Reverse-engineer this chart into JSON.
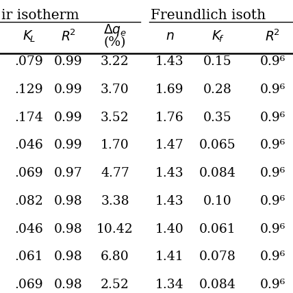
{
  "langmuir_header": "ir isotherm",
  "freundlich_header": "Freundlich isoth",
  "rows": [
    [
      ".079",
      "0.99",
      "3.22",
      "1.43",
      "0.15",
      "0.9⁶"
    ],
    [
      ".129",
      "0.99",
      "3.70",
      "1.69",
      "0.28",
      "0.9⁶"
    ],
    [
      ".174",
      "0.99",
      "3.52",
      "1.76",
      "0.35",
      "0.9⁶"
    ],
    [
      ".046",
      "0.99",
      "1.70",
      "1.47",
      "0.065",
      "0.9⁶"
    ],
    [
      ".069",
      "0.97",
      "4.77",
      "1.43",
      "0.084",
      "0.9⁶"
    ],
    [
      ".082",
      "0.98",
      "3.38",
      "1.43",
      "0.10",
      "0.9⁶"
    ],
    [
      ".046",
      "0.98",
      "10.42",
      "1.40",
      "0.061",
      "0.9⁶"
    ],
    [
      ".061",
      "0.98",
      "6.80",
      "1.41",
      "0.078",
      "0.9⁶"
    ],
    [
      ".069",
      "0.98",
      "2.52",
      "1.34",
      "0.084",
      "0.9⁶"
    ]
  ],
  "background_color": "#ffffff",
  "text_color": "#000000",
  "line_color": "#000000",
  "font_size": 13.5,
  "header_font_size": 14.5,
  "col_header_font_size": 13.5
}
